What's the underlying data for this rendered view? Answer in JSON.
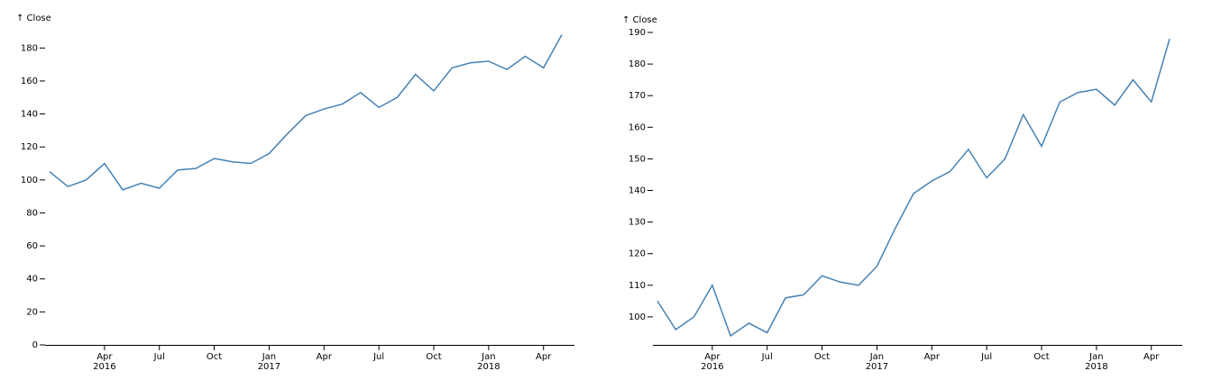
{
  "chart_data": [
    {
      "type": "line",
      "y_label": "↑ Close",
      "color": "#4682b4",
      "x": [
        "2016-01",
        "2016-02",
        "2016-03",
        "2016-04",
        "2016-05",
        "2016-06",
        "2016-07",
        "2016-08",
        "2016-09",
        "2016-10",
        "2016-11",
        "2016-12",
        "2017-01",
        "2017-02",
        "2017-03",
        "2017-04",
        "2017-05",
        "2017-06",
        "2017-07",
        "2017-08",
        "2017-09",
        "2017-10",
        "2017-11",
        "2017-12",
        "2018-01",
        "2018-02",
        "2018-03",
        "2018-04",
        "2018-05"
      ],
      "values": [
        105,
        96,
        100,
        110,
        94,
        98,
        95,
        106,
        107,
        113,
        111,
        110,
        116,
        128,
        139,
        143,
        146,
        153,
        144,
        150,
        164,
        154,
        168,
        171,
        172,
        167,
        175,
        168,
        188
      ],
      "xlim": [
        "2016-01",
        "2018-05"
      ],
      "xticks": [
        {
          "value": "2016-04",
          "label": "Apr",
          "year": "2016"
        },
        {
          "value": "2016-07",
          "label": "Jul"
        },
        {
          "value": "2016-10",
          "label": "Oct"
        },
        {
          "value": "2017-01",
          "label": "Jan",
          "year": "2017"
        },
        {
          "value": "2017-04",
          "label": "Apr"
        },
        {
          "value": "2017-07",
          "label": "Jul"
        },
        {
          "value": "2017-10",
          "label": "Oct"
        },
        {
          "value": "2018-01",
          "label": "Jan",
          "year": "2018"
        },
        {
          "value": "2018-04",
          "label": "Apr"
        }
      ],
      "ylim": [
        0,
        190
      ],
      "yticks": [
        0,
        20,
        40,
        60,
        80,
        100,
        120,
        140,
        160,
        180
      ]
    },
    {
      "type": "line",
      "y_label": "↑ Close",
      "color": "#4682b4",
      "x": [
        "2016-01",
        "2016-02",
        "2016-03",
        "2016-04",
        "2016-05",
        "2016-06",
        "2016-07",
        "2016-08",
        "2016-09",
        "2016-10",
        "2016-11",
        "2016-12",
        "2017-01",
        "2017-02",
        "2017-03",
        "2017-04",
        "2017-05",
        "2017-06",
        "2017-07",
        "2017-08",
        "2017-09",
        "2017-10",
        "2017-11",
        "2017-12",
        "2018-01",
        "2018-02",
        "2018-03",
        "2018-04",
        "2018-05"
      ],
      "values": [
        105,
        96,
        100,
        110,
        94,
        98,
        95,
        106,
        107,
        113,
        111,
        110,
        116,
        128,
        139,
        143,
        146,
        153,
        144,
        150,
        164,
        154,
        168,
        171,
        172,
        167,
        175,
        168,
        188
      ],
      "xlim": [
        "2016-01",
        "2018-05"
      ],
      "xticks": [
        {
          "value": "2016-04",
          "label": "Apr",
          "year": "2016"
        },
        {
          "value": "2016-07",
          "label": "Jul"
        },
        {
          "value": "2016-10",
          "label": "Oct"
        },
        {
          "value": "2017-01",
          "label": "Jan",
          "year": "2017"
        },
        {
          "value": "2017-04",
          "label": "Apr"
        },
        {
          "value": "2017-07",
          "label": "Jul"
        },
        {
          "value": "2017-10",
          "label": "Oct"
        },
        {
          "value": "2018-01",
          "label": "Jan",
          "year": "2018"
        },
        {
          "value": "2018-04",
          "label": "Apr"
        }
      ],
      "ylim": [
        91,
        191
      ],
      "yticks": [
        100,
        110,
        120,
        130,
        140,
        150,
        160,
        170,
        180,
        190
      ]
    }
  ]
}
